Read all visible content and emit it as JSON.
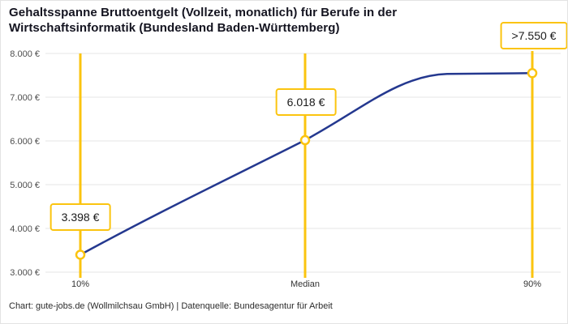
{
  "chart_data": {
    "type": "line",
    "title": "Gehaltsspanne Bruttoentgelt (Vollzeit, monatlich) für Berufe in der Wirtschaftsinformatik (Bundesland Baden-Württemberg)",
    "categories": [
      "10%",
      "Median",
      "90%"
    ],
    "values": [
      3398,
      6018,
      7550
    ],
    "value_labels": [
      "3.398 €",
      "6.018 €",
      ">7.550 €"
    ],
    "xlabel": "",
    "ylabel": "",
    "ylim": [
      3000,
      8000
    ],
    "ytick_values": [
      3000,
      4000,
      5000,
      6000,
      7000,
      8000
    ],
    "ytick_labels": [
      "3.000 €",
      "4.000 €",
      "5.000 €",
      "6.000 €",
      "7.000 €",
      "8.000 €"
    ],
    "grid": "horizontal",
    "legend": "none",
    "colors": {
      "line": "#24388F",
      "accent": "#FBC40F",
      "grid": "#E4E4E4",
      "ytick_text": "#4D4D4D",
      "xtick_text": "#333333",
      "title": "#141420"
    }
  },
  "footer": "Chart: gute-jobs.de (Wollmilchsau GmbH) | Datenquelle: Bundesagentur für Arbeit"
}
